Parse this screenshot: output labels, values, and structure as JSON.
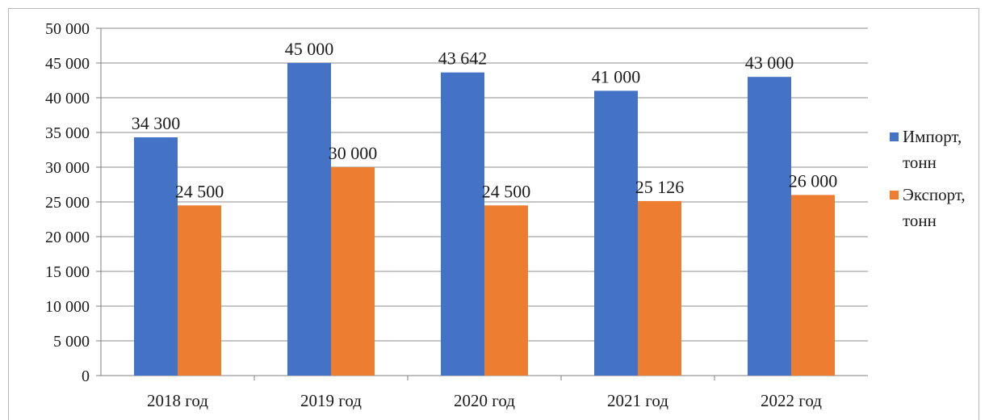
{
  "chart_data": {
    "type": "bar",
    "categories": [
      "2018 год",
      "2019 год",
      "2020 год",
      "2021 год",
      "2022 год"
    ],
    "series": [
      {
        "name": "Импорт, тонн",
        "values": [
          34300,
          45000,
          43642,
          41000,
          43000
        ],
        "labels": [
          "34 300",
          "45 000",
          "43 642",
          "41 000",
          "43 000"
        ],
        "color": "#4472C4"
      },
      {
        "name": "Экспорт, тонн",
        "values": [
          24500,
          30000,
          24500,
          25126,
          26000
        ],
        "labels": [
          "24 500",
          "30 000",
          "24 500",
          "25 126",
          "26 000"
        ],
        "color": "#ED7D31"
      }
    ],
    "title": "",
    "xlabel": "",
    "ylabel": "",
    "ylim": [
      0,
      50000
    ],
    "yticks": [
      0,
      5000,
      10000,
      15000,
      20000,
      25000,
      30000,
      35000,
      40000,
      45000,
      50000
    ],
    "ytick_labels": [
      "0",
      "5 000",
      "10 000",
      "15 000",
      "20 000",
      "25 000",
      "30 000",
      "35 000",
      "40 000",
      "45 000",
      "50 000"
    ],
    "grid": true,
    "gridline_color": "#8c8c8c",
    "legend": {
      "placement": "right",
      "entries": [
        {
          "lines": [
            "Импорт,",
            "тонн"
          ],
          "color": "#4472C4"
        },
        {
          "lines": [
            "Экспорт,",
            "тонн"
          ],
          "color": "#ED7D31"
        }
      ]
    }
  }
}
